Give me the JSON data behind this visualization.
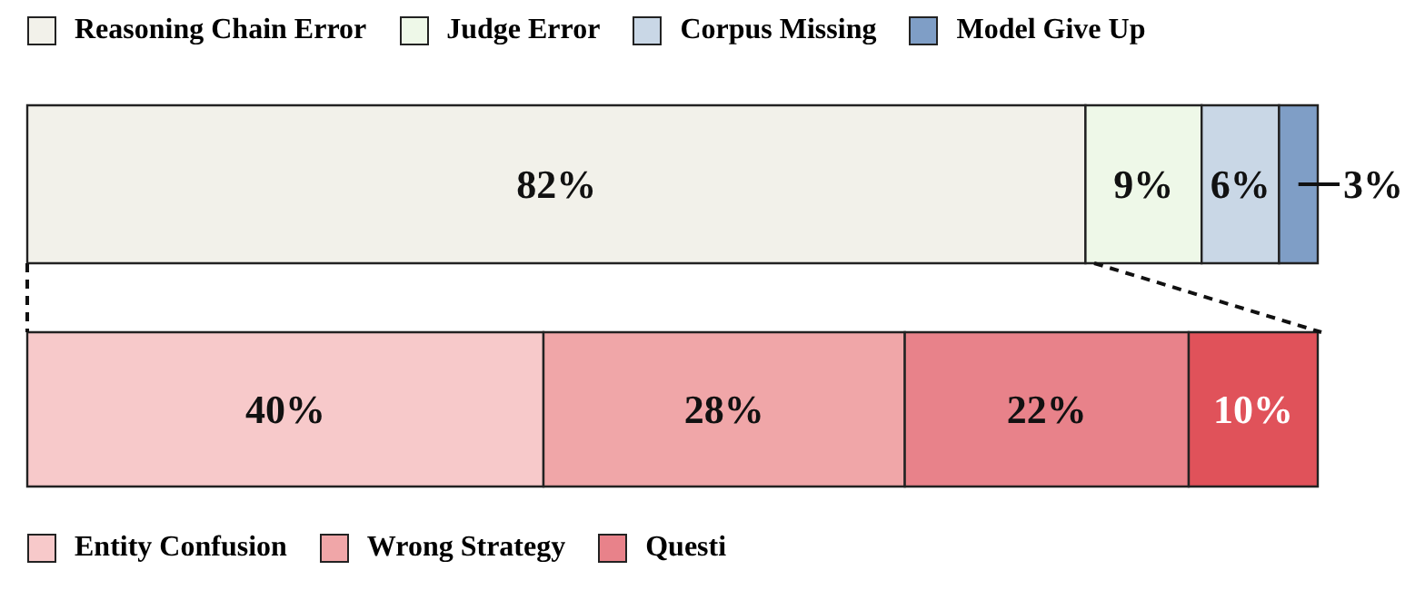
{
  "chart_data": [
    {
      "type": "bar",
      "orientation": "horizontal",
      "stacked": true,
      "categories": [
        null
      ],
      "legend": "top left",
      "data_labels": true,
      "series": [
        {
          "name": "Reasoning Chain Error",
          "color": "#f2f1ea",
          "values": [
            82
          ],
          "value_labels": [
            "82%"
          ]
        },
        {
          "name": "Judge Error",
          "color": "#eef8e8",
          "values": [
            9
          ],
          "value_labels": [
            "9%"
          ]
        },
        {
          "name": "Corpus Missing",
          "color": "#c9d7e6",
          "values": [
            6
          ],
          "value_labels": [
            "6%"
          ]
        },
        {
          "name": "Model Give Up",
          "color": "#7f9ec6",
          "values": [
            3
          ],
          "value_labels": [
            "3%"
          ]
        }
      ]
    },
    {
      "type": "bar",
      "orientation": "horizontal",
      "stacked": true,
      "categories": [
        null
      ],
      "legend": "bottom left",
      "data_labels": true,
      "series": [
        {
          "name": "Entity Confusion",
          "color": "#f7c9ca",
          "values": [
            40
          ],
          "value_labels": [
            "40%"
          ]
        },
        {
          "name": "Wrong Strategy",
          "color": "#f0a6a8",
          "values": [
            28
          ],
          "value_labels": [
            "28%"
          ]
        },
        {
          "name": "Questi",
          "color": "#e8828a",
          "values": [
            22
          ],
          "value_labels": [
            "22%"
          ]
        },
        {
          "color": "#e0525a",
          "values": [
            10
          ],
          "value_labels": [
            "10%"
          ]
        }
      ]
    }
  ]
}
